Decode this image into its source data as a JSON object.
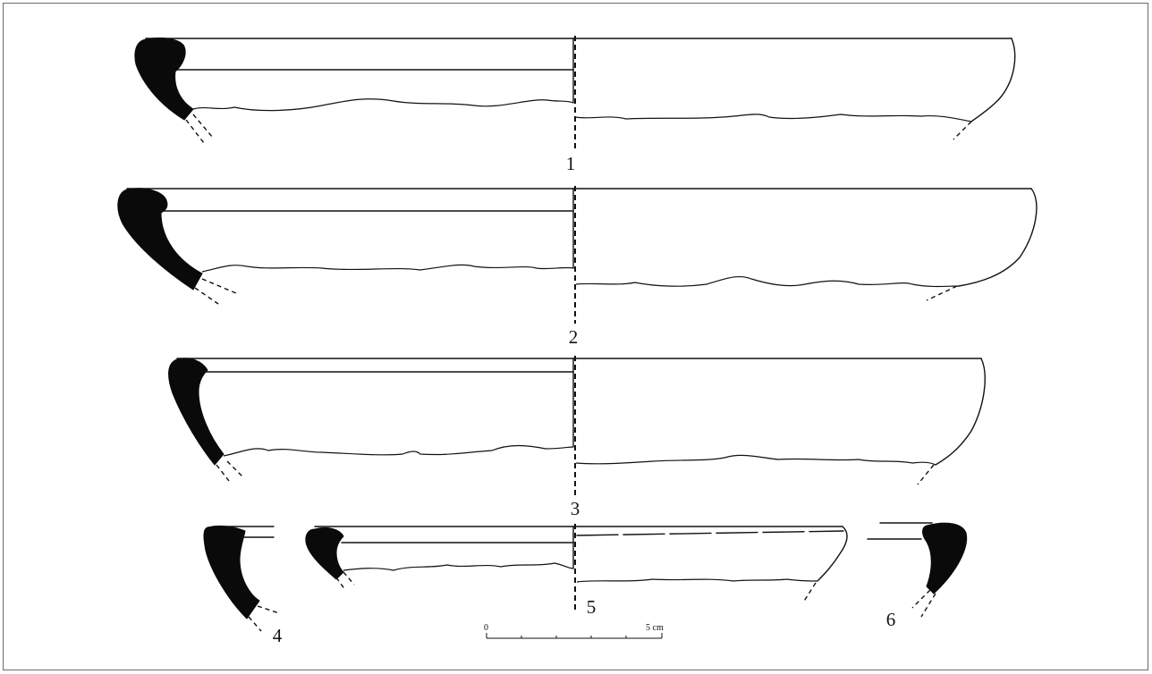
{
  "figures": [
    {
      "label": "1"
    },
    {
      "label": "2"
    },
    {
      "label": "3"
    },
    {
      "label": "4"
    },
    {
      "label": "5"
    },
    {
      "label": "6"
    }
  ],
  "scale": {
    "start": "0",
    "end": "5 cm"
  },
  "colors": {
    "ink": "#111111",
    "section_fill": "#0a0a0a",
    "frame": "#6b6b6b"
  }
}
